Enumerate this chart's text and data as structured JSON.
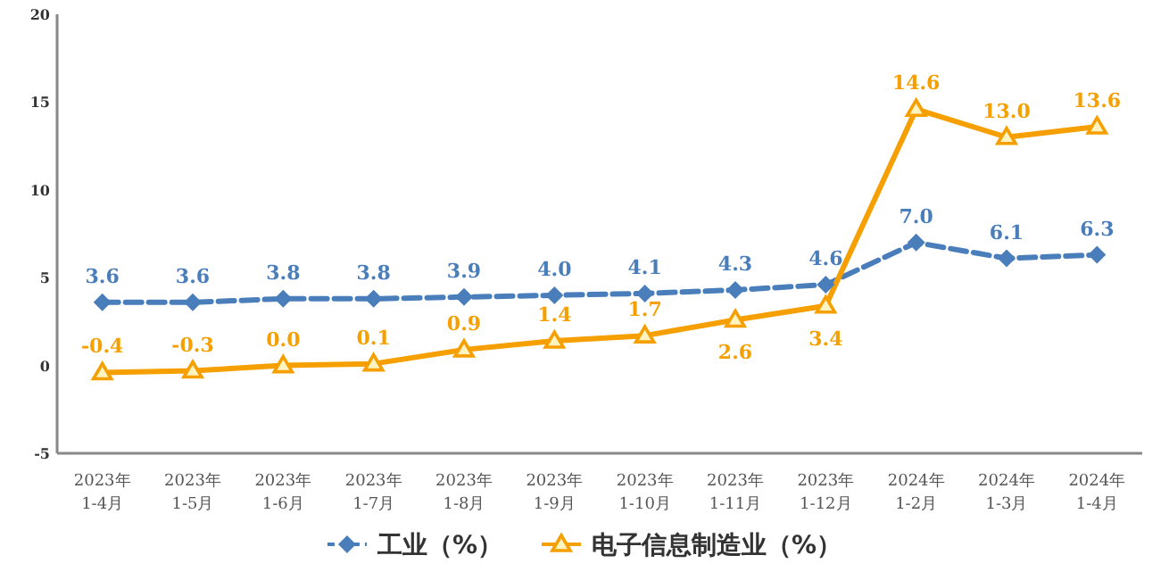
{
  "chart_data": {
    "type": "line",
    "categories": [
      "2023年 1-4月",
      "2023年 1-5月",
      "2023年 1-6月",
      "2023年 1-7月",
      "2023年 1-8月",
      "2023年 1-9月",
      "2023年 1-10月",
      "2023年 1-11月",
      "2023年 1-12月",
      "2024年 1-2月",
      "2024年 1-3月",
      "2024年 1-4月"
    ],
    "series": [
      {
        "name": "工业（%）",
        "color": "#4a7ebb",
        "marker": "diamond",
        "line_style": "dashed",
        "values": [
          3.6,
          3.6,
          3.8,
          3.8,
          3.9,
          4,
          4.1,
          4.3,
          4.6,
          7,
          6.1,
          6.3
        ],
        "value_labels": [
          "3.6",
          "3.6",
          "3.8",
          "3.8",
          "3.9",
          "4.0",
          "4.1",
          "4.3",
          "4.6",
          "7.0",
          "6.1",
          "6.3"
        ]
      },
      {
        "name": "电子信息制造业（%）",
        "color": "#f5a000",
        "marker": "triangle",
        "line_style": "solid",
        "values": [
          -0.4,
          -0.3,
          0,
          0.1,
          0.9,
          1.4,
          1.7,
          2.6,
          3.4,
          14.6,
          13,
          13.6
        ],
        "value_labels": [
          "-0.4",
          "-0.3",
          "0.0",
          "0.1",
          "0.9",
          "1.4",
          "1.7",
          "2.6",
          "3.4",
          "14.6",
          "13.0",
          "13.6"
        ]
      }
    ],
    "ylim": [
      -5,
      20
    ],
    "yticks": [
      -5,
      0,
      5,
      10,
      15,
      20
    ],
    "legend": "bottom",
    "grid": false
  }
}
